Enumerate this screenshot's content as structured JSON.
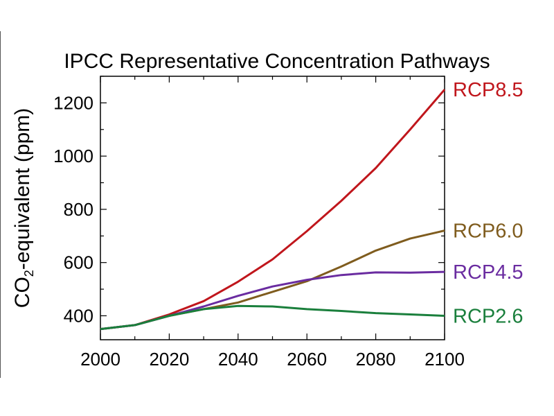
{
  "chart_data": {
    "type": "line",
    "title": "IPCC Representative Concentration Pathways",
    "ylabel_prefix": "CO",
    "ylabel_subscript": "2",
    "ylabel_suffix": "-equivalent (ppm)",
    "xlabel": "",
    "xlim": [
      2000,
      2100
    ],
    "ylim": [
      310,
      1300
    ],
    "x_ticks": [
      2000,
      2020,
      2040,
      2060,
      2080,
      2100
    ],
    "y_ticks": [
      400,
      600,
      800,
      1000,
      1200
    ],
    "grid": false,
    "x": [
      2000,
      2010,
      2020,
      2030,
      2040,
      2050,
      2060,
      2070,
      2080,
      2090,
      2100
    ],
    "series": [
      {
        "name": "RCP8.5",
        "color": "#c0161c",
        "values": [
          350,
          365,
          405,
          455,
          528,
          612,
          718,
          832,
          955,
          1100,
          1250
        ]
      },
      {
        "name": "RCP6.0",
        "color": "#7f5c1e",
        "values": [
          350,
          365,
          400,
          425,
          450,
          490,
          530,
          585,
          645,
          690,
          720
        ]
      },
      {
        "name": "RCP4.5",
        "color": "#6a2ca0",
        "values": [
          350,
          365,
          400,
          435,
          475,
          510,
          535,
          553,
          563,
          562,
          565
        ]
      },
      {
        "name": "RCP2.6",
        "color": "#1a7f3c",
        "values": [
          350,
          365,
          400,
          425,
          437,
          435,
          425,
          418,
          410,
          405,
          400
        ]
      }
    ]
  }
}
